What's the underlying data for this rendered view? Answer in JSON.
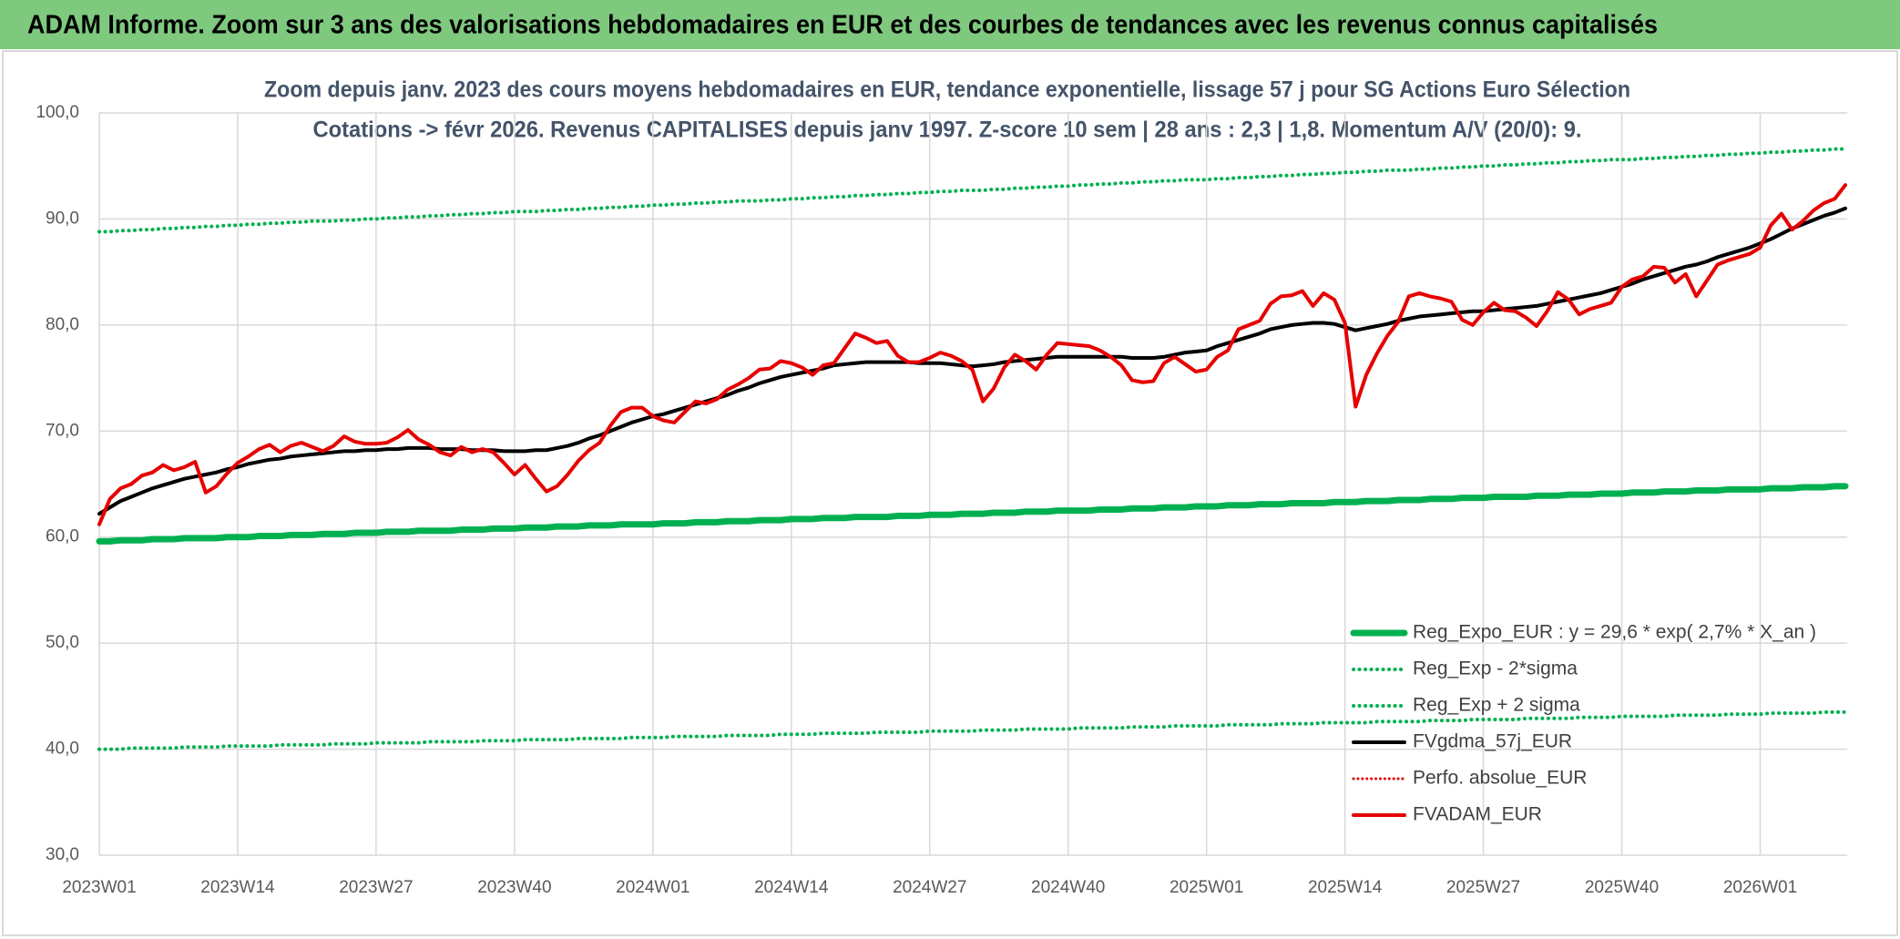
{
  "chart_data": {
    "type": "line",
    "title": "ADAM Informe. Zoom sur 3 ans des valorisations hebdomadaires en EUR et des courbes de tendances avec les revenus connus capitalisés",
    "subtitle": [
      "Zoom depuis janv. 2023 des cours moyens hebdomadaires en EUR, tendance exponentielle, lissage 57 j pour SG Actions Euro Sélection",
      "Cotations -> févr 2026. Revenus CAPITALISES depuis janv 1997. Z-score 10 sem | 28 ans : 2,3 | 1,8. Momentum A/V (20/0): 9."
    ],
    "categories": [
      "2023W01",
      null,
      null,
      null,
      null,
      null,
      null,
      null,
      null,
      null,
      null,
      null,
      null,
      "2023W14",
      null,
      null,
      null,
      null,
      null,
      null,
      null,
      null,
      null,
      null,
      null,
      null,
      "2023W27",
      null,
      null,
      null,
      null,
      null,
      null,
      null,
      null,
      null,
      null,
      null,
      null,
      "2023W40",
      null,
      null,
      null,
      null,
      null,
      null,
      null,
      null,
      null,
      null,
      null,
      null,
      "2024W01",
      null,
      null,
      null,
      null,
      null,
      null,
      null,
      null,
      null,
      null,
      null,
      null,
      "2024W14",
      null,
      null,
      null,
      null,
      null,
      null,
      null,
      null,
      null,
      null,
      null,
      null,
      "2024W27",
      null,
      null,
      null,
      null,
      null,
      null,
      null,
      null,
      null,
      null,
      null,
      null,
      "2024W40",
      null,
      null,
      null,
      null,
      null,
      null,
      null,
      null,
      null,
      null,
      null,
      null,
      "2025W01",
      null,
      null,
      null,
      null,
      null,
      null,
      null,
      null,
      null,
      null,
      null,
      null,
      "2025W14",
      null,
      null,
      null,
      null,
      null,
      null,
      null,
      null,
      null,
      null,
      null,
      null,
      "2025W27",
      null,
      null,
      null,
      null,
      null,
      null,
      null,
      null,
      null,
      null,
      null,
      null,
      "2025W40",
      null,
      null,
      null,
      null,
      null,
      null,
      null,
      null,
      null,
      null,
      null,
      null,
      "2026W01",
      null,
      null,
      null,
      null,
      null,
      null,
      null,
      null
    ],
    "ylim": [
      30,
      100
    ],
    "yticks": [
      {
        "value": 30,
        "label": "30,0"
      },
      {
        "value": 40,
        "label": "40,0"
      },
      {
        "value": 50,
        "label": "50,0"
      },
      {
        "value": 60,
        "label": "60,0"
      },
      {
        "value": 70,
        "label": "70,0"
      },
      {
        "value": 80,
        "label": "80,0"
      },
      {
        "value": 90,
        "label": "90,0"
      },
      {
        "value": 100,
        "label": "100,0"
      }
    ],
    "grid": true,
    "legend": "lower right",
    "series": [
      {
        "name": "Reg_Expo_EUR : y = 29,6 * exp( 2,7% *  X_an )",
        "color": "#00b050",
        "style": "solid",
        "width": 7,
        "values": [
          59.6,
          59.6,
          59.7,
          59.7,
          59.7,
          59.8,
          59.8,
          59.8,
          59.9,
          59.9,
          59.9,
          59.9,
          60.0,
          60.0,
          60.0,
          60.1,
          60.1,
          60.1,
          60.2,
          60.2,
          60.2,
          60.3,
          60.3,
          60.3,
          60.4,
          60.4,
          60.4,
          60.5,
          60.5,
          60.5,
          60.6,
          60.6,
          60.6,
          60.6,
          60.7,
          60.7,
          60.7,
          60.8,
          60.8,
          60.8,
          60.9,
          60.9,
          60.9,
          61.0,
          61.0,
          61.0,
          61.1,
          61.1,
          61.1,
          61.2,
          61.2,
          61.2,
          61.2,
          61.3,
          61.3,
          61.3,
          61.4,
          61.4,
          61.4,
          61.5,
          61.5,
          61.5,
          61.6,
          61.6,
          61.6,
          61.7,
          61.7,
          61.7,
          61.8,
          61.8,
          61.8,
          61.9,
          61.9,
          61.9,
          61.9,
          62.0,
          62.0,
          62.0,
          62.1,
          62.1,
          62.1,
          62.2,
          62.2,
          62.2,
          62.3,
          62.3,
          62.3,
          62.4,
          62.4,
          62.4,
          62.5,
          62.5,
          62.5,
          62.5,
          62.6,
          62.6,
          62.6,
          62.7,
          62.7,
          62.7,
          62.8,
          62.8,
          62.8,
          62.9,
          62.9,
          62.9,
          63.0,
          63.0,
          63.0,
          63.1,
          63.1,
          63.1,
          63.2,
          63.2,
          63.2,
          63.2,
          63.3,
          63.3,
          63.3,
          63.4,
          63.4,
          63.4,
          63.5,
          63.5,
          63.5,
          63.6,
          63.6,
          63.6,
          63.7,
          63.7,
          63.7,
          63.8,
          63.8,
          63.8,
          63.8,
          63.9,
          63.9,
          63.9,
          64.0,
          64.0,
          64.0,
          64.1,
          64.1,
          64.1,
          64.2,
          64.2,
          64.2,
          64.3,
          64.3,
          64.3,
          64.4,
          64.4,
          64.4,
          64.5,
          64.5,
          64.5,
          64.5,
          64.6,
          64.6,
          64.6,
          64.7,
          64.7,
          64.7,
          64.8,
          64.8
        ]
      },
      {
        "name": "Reg_Exp - 2*sigma",
        "color": "#00b050",
        "style": "dotted",
        "width": 4,
        "values": [
          40.0,
          40.0,
          40.0,
          40.1,
          40.1,
          40.1,
          40.1,
          40.1,
          40.2,
          40.2,
          40.2,
          40.2,
          40.3,
          40.3,
          40.3,
          40.3,
          40.3,
          40.4,
          40.4,
          40.4,
          40.4,
          40.4,
          40.5,
          40.5,
          40.5,
          40.5,
          40.6,
          40.6,
          40.6,
          40.6,
          40.6,
          40.7,
          40.7,
          40.7,
          40.7,
          40.7,
          40.8,
          40.8,
          40.8,
          40.8,
          40.9,
          40.9,
          40.9,
          40.9,
          40.9,
          41.0,
          41.0,
          41.0,
          41.0,
          41.0,
          41.1,
          41.1,
          41.1,
          41.1,
          41.2,
          41.2,
          41.2,
          41.2,
          41.2,
          41.3,
          41.3,
          41.3,
          41.3,
          41.3,
          41.4,
          41.4,
          41.4,
          41.4,
          41.5,
          41.5,
          41.5,
          41.5,
          41.5,
          41.6,
          41.6,
          41.6,
          41.6,
          41.6,
          41.7,
          41.7,
          41.7,
          41.7,
          41.7,
          41.8,
          41.8,
          41.8,
          41.8,
          41.9,
          41.9,
          41.9,
          41.9,
          41.9,
          42.0,
          42.0,
          42.0,
          42.0,
          42.0,
          42.1,
          42.1,
          42.1,
          42.1,
          42.2,
          42.2,
          42.2,
          42.2,
          42.2,
          42.3,
          42.3,
          42.3,
          42.3,
          42.3,
          42.4,
          42.4,
          42.4,
          42.4,
          42.5,
          42.5,
          42.5,
          42.5,
          42.5,
          42.6,
          42.6,
          42.6,
          42.6,
          42.6,
          42.7,
          42.7,
          42.7,
          42.7,
          42.8,
          42.8,
          42.8,
          42.8,
          42.8,
          42.9,
          42.9,
          42.9,
          42.9,
          42.9,
          43.0,
          43.0,
          43.0,
          43.0,
          43.1,
          43.1,
          43.1,
          43.1,
          43.1,
          43.2,
          43.2,
          43.2,
          43.2,
          43.2,
          43.3,
          43.3,
          43.3,
          43.3,
          43.4,
          43.4,
          43.4,
          43.4,
          43.4,
          43.5,
          43.5,
          43.5
        ]
      },
      {
        "name": "Reg_Exp + 2 sigma",
        "color": "#00b050",
        "style": "dotted",
        "width": 4,
        "values": [
          88.8,
          88.8,
          88.9,
          88.9,
          89.0,
          89.0,
          89.1,
          89.1,
          89.2,
          89.2,
          89.3,
          89.3,
          89.4,
          89.4,
          89.5,
          89.5,
          89.6,
          89.6,
          89.7,
          89.7,
          89.8,
          89.8,
          89.8,
          89.9,
          89.9,
          90.0,
          90.0,
          90.1,
          90.1,
          90.2,
          90.2,
          90.3,
          90.3,
          90.4,
          90.4,
          90.5,
          90.5,
          90.6,
          90.6,
          90.7,
          90.7,
          90.7,
          90.8,
          90.8,
          90.9,
          90.9,
          91.0,
          91.0,
          91.1,
          91.1,
          91.2,
          91.2,
          91.3,
          91.3,
          91.4,
          91.4,
          91.5,
          91.5,
          91.6,
          91.6,
          91.7,
          91.7,
          91.7,
          91.8,
          91.8,
          91.9,
          91.9,
          92.0,
          92.0,
          92.1,
          92.1,
          92.2,
          92.2,
          92.3,
          92.3,
          92.4,
          92.4,
          92.5,
          92.5,
          92.6,
          92.6,
          92.7,
          92.7,
          92.7,
          92.8,
          92.8,
          92.9,
          92.9,
          93.0,
          93.0,
          93.1,
          93.1,
          93.2,
          93.2,
          93.3,
          93.3,
          93.4,
          93.4,
          93.5,
          93.5,
          93.6,
          93.6,
          93.7,
          93.7,
          93.7,
          93.8,
          93.8,
          93.9,
          93.9,
          94.0,
          94.0,
          94.1,
          94.1,
          94.2,
          94.2,
          94.3,
          94.3,
          94.4,
          94.4,
          94.5,
          94.5,
          94.6,
          94.6,
          94.6,
          94.7,
          94.7,
          94.8,
          94.8,
          94.9,
          94.9,
          95.0,
          95.0,
          95.1,
          95.1,
          95.2,
          95.2,
          95.3,
          95.3,
          95.4,
          95.4,
          95.5,
          95.5,
          95.6,
          95.6,
          95.6,
          95.7,
          95.7,
          95.8,
          95.8,
          95.9,
          95.9,
          96.0,
          96.0,
          96.1,
          96.1,
          96.2,
          96.2,
          96.3,
          96.3,
          96.4,
          96.4,
          96.5,
          96.5,
          96.6,
          96.6
        ]
      },
      {
        "name": "FVgdma_57j_EUR",
        "color": "#000000",
        "style": "solid",
        "width": 4,
        "values": [
          62.2,
          62.8,
          63.4,
          63.8,
          64.2,
          64.6,
          64.9,
          65.2,
          65.5,
          65.7,
          65.9,
          66.1,
          66.4,
          66.6,
          66.9,
          67.1,
          67.3,
          67.4,
          67.6,
          67.7,
          67.8,
          67.9,
          68.0,
          68.1,
          68.1,
          68.2,
          68.2,
          68.3,
          68.3,
          68.4,
          68.4,
          68.4,
          68.3,
          68.3,
          68.3,
          68.2,
          68.2,
          68.2,
          68.1,
          68.1,
          68.1,
          68.2,
          68.2,
          68.4,
          68.6,
          68.9,
          69.3,
          69.6,
          70.0,
          70.4,
          70.8,
          71.1,
          71.4,
          71.6,
          71.9,
          72.2,
          72.5,
          72.8,
          73.1,
          73.4,
          73.8,
          74.1,
          74.5,
          74.8,
          75.1,
          75.3,
          75.5,
          75.7,
          75.9,
          76.2,
          76.3,
          76.4,
          76.5,
          76.5,
          76.5,
          76.5,
          76.5,
          76.4,
          76.4,
          76.4,
          76.3,
          76.2,
          76.1,
          76.2,
          76.3,
          76.5,
          76.6,
          76.7,
          76.8,
          76.9,
          77.0,
          77.0,
          77.0,
          77.0,
          77.0,
          77.0,
          77.0,
          76.9,
          76.9,
          76.9,
          77.0,
          77.2,
          77.4,
          77.5,
          77.6,
          78.0,
          78.3,
          78.6,
          78.9,
          79.2,
          79.6,
          79.8,
          80.0,
          80.1,
          80.2,
          80.2,
          80.1,
          79.8,
          79.5,
          79.7,
          79.9,
          80.1,
          80.4,
          80.6,
          80.8,
          80.9,
          81.0,
          81.1,
          81.2,
          81.3,
          81.3,
          81.4,
          81.5,
          81.6,
          81.7,
          81.8,
          82.0,
          82.2,
          82.4,
          82.6,
          82.8,
          83.0,
          83.3,
          83.6,
          83.9,
          84.3,
          84.6,
          84.9,
          85.2,
          85.5,
          85.7,
          86.0,
          86.4,
          86.7,
          87.0,
          87.3,
          87.7,
          88.1,
          88.6,
          89.1,
          89.5,
          89.9,
          90.3,
          90.6,
          91.0
        ]
      },
      {
        "name": "Perfo. absolue_EUR",
        "color": "#e00000",
        "style": "dotted",
        "width": 3
      },
      {
        "name": "FVADAM_EUR",
        "color": "#e60000",
        "style": "solid",
        "width": 4,
        "values": [
          61.2,
          63.6,
          64.6,
          65.0,
          65.8,
          66.1,
          66.8,
          66.3,
          66.6,
          67.1,
          64.2,
          64.8,
          66.0,
          67.0,
          67.6,
          68.3,
          68.7,
          68.0,
          68.6,
          68.9,
          68.5,
          68.1,
          68.6,
          69.5,
          69.0,
          68.8,
          68.8,
          68.9,
          69.4,
          70.1,
          69.2,
          68.7,
          68.0,
          67.7,
          68.5,
          68.0,
          68.3,
          68.0,
          67.0,
          65.9,
          66.8,
          65.5,
          64.3,
          64.8,
          65.9,
          67.2,
          68.2,
          68.9,
          70.5,
          71.8,
          72.2,
          72.2,
          71.4,
          71.0,
          70.8,
          71.8,
          72.8,
          72.6,
          73.0,
          73.9,
          74.4,
          75.0,
          75.8,
          75.9,
          76.6,
          76.4,
          76.0,
          75.3,
          76.2,
          76.4,
          77.8,
          79.2,
          78.8,
          78.3,
          78.5,
          77.1,
          76.5,
          76.5,
          76.9,
          77.4,
          77.1,
          76.6,
          75.8,
          72.8,
          74.0,
          76.0,
          77.2,
          76.6,
          75.8,
          77.2,
          78.3,
          78.2,
          78.1,
          78.0,
          77.6,
          77.0,
          76.2,
          74.8,
          74.6,
          74.7,
          76.4,
          77.0,
          76.3,
          75.6,
          75.8,
          77.0,
          77.6,
          79.6,
          80.0,
          80.4,
          82.0,
          82.7,
          82.8,
          83.2,
          81.8,
          83.0,
          82.4,
          80.2,
          72.3,
          75.3,
          77.3,
          79.0,
          80.3,
          82.7,
          83.0,
          82.7,
          82.5,
          82.2,
          80.5,
          80.0,
          81.2,
          82.1,
          81.4,
          81.3,
          80.7,
          79.9,
          81.3,
          83.1,
          82.4,
          81.0,
          81.5,
          81.8,
          82.1,
          83.6,
          84.3,
          84.6,
          85.5,
          85.4,
          84.0,
          84.8,
          82.7,
          84.2,
          85.7,
          86.1,
          86.4,
          86.7,
          87.3,
          89.4,
          90.5,
          89.0,
          89.8,
          90.8,
          91.5,
          91.9,
          93.2
        ]
      }
    ]
  }
}
